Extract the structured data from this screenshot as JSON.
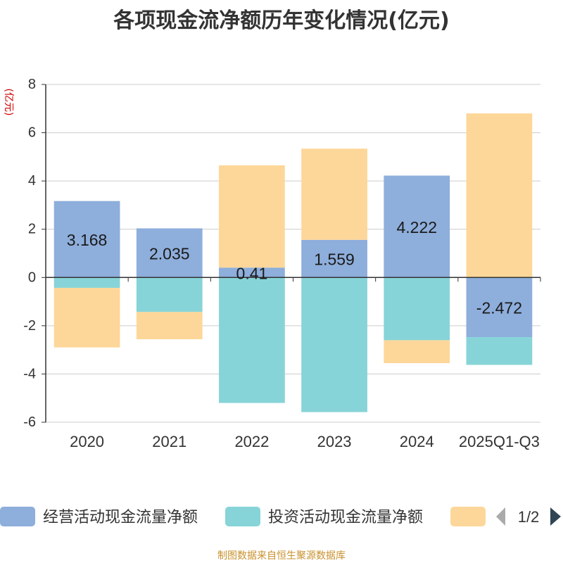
{
  "title": "各项现金流净额历年变化情况(亿元)",
  "footer": "制图数据来自恒生聚源数据库",
  "legend_page": "1/2",
  "chart_data": {
    "type": "bar",
    "stacked": true,
    "title": "各项现金流净额历年变化情况(亿元)",
    "ylabel": "(亿元)",
    "xlabel": "",
    "ylim": [
      -6,
      8
    ],
    "yticks": [
      -6,
      -4,
      -2,
      0,
      2,
      4,
      6,
      8
    ],
    "grid": true,
    "legend_position": "bottom",
    "categories": [
      "2020",
      "2021",
      "2022",
      "2023",
      "2024",
      "2025Q1-Q3"
    ],
    "series": [
      {
        "name": "经营活动现金流量净额",
        "color": "#8eaedb",
        "values": [
          3.168,
          2.035,
          0.41,
          1.559,
          4.222,
          -2.472
        ],
        "labels": [
          "3.168",
          "2.035",
          "0.41",
          "1.559",
          "4.222",
          "-2.472"
        ]
      },
      {
        "name": "投资活动现金流量净额",
        "color": "#87d4d8",
        "values": [
          -0.43,
          -1.43,
          -5.2,
          -5.58,
          -2.6,
          -1.15
        ]
      },
      {
        "name": "",
        "color": "#fdd799",
        "values": [
          -2.47,
          -1.13,
          4.24,
          3.78,
          -0.95,
          6.8
        ]
      }
    ]
  },
  "colors": {
    "axis": "#333333",
    "grid": "#cccccc",
    "tick_text": "#333333",
    "ylabel": "#cc0000",
    "pager_active": "#2f4554",
    "pager_inactive": "#aaaaaa"
  }
}
